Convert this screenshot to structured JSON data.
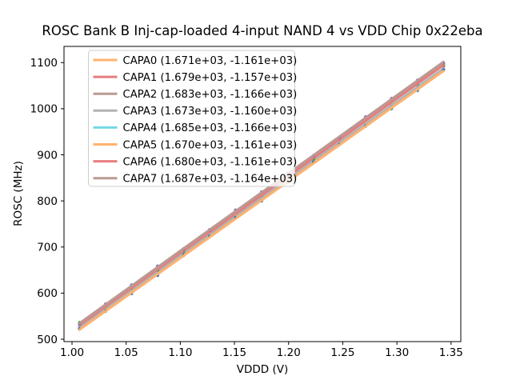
{
  "window": {
    "background": "#ffffff"
  },
  "chart_data": {
    "type": "line",
    "title": "ROSC Bank B Inj-cap-loaded 4-input NAND 4 vs VDD Chip 0x22eba",
    "xlabel": "VDDD (V)",
    "ylabel": "ROSC (MHz)",
    "xlim": [
      0.9926,
      1.359
    ],
    "ylim": [
      494.8,
      1135.2
    ],
    "xtick_values": [
      1.0,
      1.05,
      1.1,
      1.15,
      1.2,
      1.25,
      1.3,
      1.35
    ],
    "xtick_labels": [
      "1.00",
      "1.05",
      "1.10",
      "1.15",
      "1.20",
      "1.25",
      "1.30",
      "1.35"
    ],
    "ytick_values": [
      500,
      600,
      700,
      800,
      900,
      1000,
      1100
    ],
    "ytick_labels": [
      "500",
      "600",
      "700",
      "800",
      "900",
      "1000",
      "1100"
    ],
    "grid": false,
    "legend_position": "upper-left",
    "x": [
      1.007,
      1.031,
      1.055,
      1.079,
      1.103,
      1.127,
      1.151,
      1.175,
      1.199,
      1.223,
      1.247,
      1.271,
      1.295,
      1.319,
      1.343
    ],
    "series": [
      {
        "name": "CAPA0",
        "label": "CAPA0 (1.671e+03, -1.161e+03)",
        "slope": 1671,
        "intercept": -1161,
        "line_color": "#ffb26e",
        "marker_color": "#1f77b4"
      },
      {
        "name": "CAPA1",
        "label": "CAPA1 (1.679e+03, -1.157e+03)",
        "slope": 1679,
        "intercept": -1157,
        "line_color": "#e67d7e",
        "marker_color": "#2ca02c"
      },
      {
        "name": "CAPA2",
        "label": "CAPA2 (1.683e+03, -1.166e+03)",
        "slope": 1683,
        "intercept": -1166,
        "line_color": "#ba9a93",
        "marker_color": "#9467bd"
      },
      {
        "name": "CAPA3",
        "label": "CAPA3 (1.673e+03, -1.160e+03)",
        "slope": 1673,
        "intercept": -1160,
        "line_color": "#b2b2b2",
        "marker_color": "#e377c2"
      },
      {
        "name": "CAPA4",
        "label": "CAPA4 (1.685e+03, -1.166e+03)",
        "slope": 1685,
        "intercept": -1166,
        "line_color": "#74d8e2",
        "marker_color": "#bcbd22"
      },
      {
        "name": "CAPA5",
        "label": "CAPA5 (1.670e+03, -1.161e+03)",
        "slope": 1670,
        "intercept": -1161,
        "line_color": "#ffb26e",
        "marker_color": "#1f77b4"
      },
      {
        "name": "CAPA6",
        "label": "CAPA6 (1.680e+03, -1.161e+03)",
        "slope": 1680,
        "intercept": -1161,
        "line_color": "#e67d7e",
        "marker_color": "#2ca02c"
      },
      {
        "name": "CAPA7",
        "label": "CAPA7 (1.687e+03, -1.164e+03)",
        "slope": 1687,
        "intercept": -1164,
        "line_color": "#ba9a93",
        "marker_color": "#9467bd"
      }
    ],
    "markers": {
      "error_mhz": 4,
      "jitter_mhz": [
        1.2,
        -1.8,
        0.6,
        2.1,
        -0.9,
        1.5,
        -2.2,
        0.3,
        1.8,
        -1.2,
        0.9,
        -0.6,
        2.0,
        0.8,
        -1.5
      ]
    },
    "axis_color": "#000000",
    "legend_frame_color": "#cccccc"
  }
}
